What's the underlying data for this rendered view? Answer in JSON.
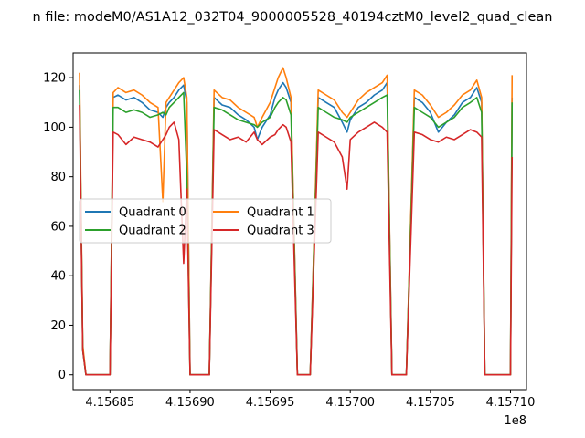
{
  "chart_data": {
    "type": "line",
    "title": "n file: modeM0/AS1A12_032T04_9000005528_40194cztM0_level2_quad_clean",
    "xlabel": "",
    "ylabel": "",
    "x_offset_label": "1e8",
    "xlim": [
      415682700,
      415711000
    ],
    "ylim": [
      -6,
      130
    ],
    "x_ticks": [
      415685000,
      415690000,
      415695000,
      415700000,
      415705000,
      415710000
    ],
    "x_tick_labels": [
      "4.15685",
      "4.15690",
      "4.15695",
      "4.15700",
      "4.15705",
      "4.15710"
    ],
    "y_ticks": [
      0,
      20,
      40,
      60,
      80,
      100,
      120
    ],
    "y_tick_labels": [
      "0",
      "20",
      "40",
      "60",
      "80",
      "100",
      "120"
    ],
    "grid": false,
    "legend_position": "center-left",
    "legend_columns": 2,
    "series": [
      {
        "name": "Quadrant 0",
        "color": "#1f77b4",
        "x": [
          415683100,
          415683300,
          415683500,
          415683700,
          415684000,
          415684400,
          415684800,
          415685000,
          415685200,
          415685500,
          415686000,
          415686500,
          415687000,
          415687500,
          415688000,
          415688300,
          415688500,
          415688700,
          415689000,
          415689300,
          415689600,
          415689800,
          415690000,
          415690500,
          415691000,
          415691200,
          415691500,
          415692000,
          415692500,
          415693000,
          415693500,
          415694000,
          415694200,
          415694500,
          415695000,
          415695300,
          415695500,
          415695800,
          415696000,
          415696300,
          415696700,
          415697000,
          415697200,
          415697500,
          415698000,
          415698500,
          415699000,
          415699500,
          415699800,
          415700000,
          415700500,
          415701000,
          415701500,
          415702000,
          415702300,
          415702600,
          415703000,
          415703300,
          415703500,
          415704000,
          415704500,
          415705000,
          415705500,
          415706000,
          415706500,
          415707000,
          415707500,
          415707900,
          415708200,
          415708400,
          415708700,
          415709000,
          415709500,
          415709800,
          415710000,
          415710100
        ],
        "y": [
          117,
          10,
          0,
          0,
          0,
          0,
          0,
          0,
          112,
          113,
          111,
          112,
          110,
          107,
          106,
          104,
          108,
          110,
          112,
          115,
          117,
          110,
          0,
          0,
          0,
          0,
          112,
          109,
          108,
          105,
          103,
          100,
          95,
          100,
          105,
          112,
          115,
          118,
          116,
          110,
          0,
          0,
          0,
          0,
          112,
          110,
          108,
          102,
          98,
          103,
          108,
          110,
          113,
          115,
          118,
          0,
          0,
          0,
          0,
          112,
          110,
          106,
          98,
          102,
          105,
          110,
          112,
          116,
          110,
          0,
          0,
          0,
          0,
          0,
          0,
          112
        ]
      },
      {
        "name": "Quadrant 1",
        "color": "#ff7f0e",
        "x": [
          415683100,
          415683300,
          415683500,
          415683700,
          415684000,
          415684400,
          415684800,
          415685000,
          415685200,
          415685500,
          415686000,
          415686500,
          415687000,
          415687500,
          415688000,
          415688300,
          415688500,
          415688700,
          415689000,
          415689300,
          415689600,
          415689800,
          415690000,
          415690500,
          415691000,
          415691200,
          415691500,
          415692000,
          415692500,
          415693000,
          415693500,
          415694000,
          415694200,
          415694500,
          415695000,
          415695300,
          415695500,
          415695800,
          415696000,
          415696300,
          415696700,
          415697000,
          415697200,
          415697500,
          415698000,
          415698500,
          415699000,
          415699500,
          415699800,
          415700000,
          415700500,
          415701000,
          415701500,
          415702000,
          415702300,
          415702600,
          415703000,
          415703300,
          415703500,
          415704000,
          415704500,
          415705000,
          415705500,
          415706000,
          415706500,
          415707000,
          415707500,
          415707900,
          415708200,
          415708400,
          415708700,
          415709000,
          415709500,
          415709800,
          415710000,
          415710100
        ],
        "y": [
          122,
          12,
          0,
          0,
          0,
          0,
          0,
          0,
          114,
          116,
          114,
          115,
          113,
          110,
          108,
          70,
          110,
          112,
          115,
          118,
          120,
          112,
          0,
          0,
          0,
          0,
          115,
          112,
          111,
          108,
          106,
          104,
          100,
          104,
          110,
          116,
          120,
          124,
          120,
          112,
          0,
          0,
          0,
          0,
          115,
          113,
          111,
          106,
          104,
          106,
          111,
          114,
          116,
          118,
          121,
          0,
          0,
          0,
          0,
          115,
          113,
          109,
          104,
          106,
          109,
          113,
          115,
          119,
          112,
          0,
          0,
          0,
          0,
          0,
          0,
          121
        ]
      },
      {
        "name": "Quadrant 2",
        "color": "#2ca02c",
        "x": [
          415683100,
          415683300,
          415683500,
          415683700,
          415684000,
          415684400,
          415684800,
          415685000,
          415685200,
          415685500,
          415686000,
          415686500,
          415687000,
          415687500,
          415688000,
          415688300,
          415688500,
          415688700,
          415689000,
          415689300,
          415689600,
          415689800,
          415690000,
          415690500,
          415691000,
          415691200,
          415691500,
          415692000,
          415692500,
          415693000,
          415693500,
          415694000,
          415694200,
          415694500,
          415695000,
          415695300,
          415695500,
          415695800,
          415696000,
          415696300,
          415696700,
          415697000,
          415697200,
          415697500,
          415698000,
          415698500,
          415699000,
          415699500,
          415699800,
          415700000,
          415700500,
          415701000,
          415701500,
          415702000,
          415702300,
          415702600,
          415703000,
          415703300,
          415703500,
          415704000,
          415704500,
          415705000,
          415705500,
          415706000,
          415706500,
          415707000,
          415707500,
          415707900,
          415708200,
          415708400,
          415708700,
          415709000,
          415709500,
          415709800,
          415710000,
          415710100
        ],
        "y": [
          115,
          10,
          0,
          0,
          0,
          0,
          0,
          0,
          108,
          108,
          106,
          107,
          106,
          104,
          105,
          106,
          105,
          108,
          110,
          112,
          114,
          80,
          0,
          0,
          0,
          0,
          108,
          107,
          105,
          103,
          102,
          101,
          100,
          102,
          104,
          108,
          110,
          112,
          111,
          105,
          0,
          0,
          0,
          0,
          108,
          106,
          104,
          103,
          102,
          104,
          106,
          108,
          110,
          112,
          113,
          0,
          0,
          0,
          0,
          108,
          106,
          104,
          100,
          102,
          104,
          108,
          110,
          112,
          106,
          0,
          0,
          0,
          0,
          0,
          0,
          110
        ]
      },
      {
        "name": "Quadrant 3",
        "color": "#d62728",
        "x": [
          415683100,
          415683300,
          415683500,
          415683700,
          415684000,
          415684400,
          415684800,
          415685000,
          415685200,
          415685500,
          415686000,
          415686500,
          415687000,
          415687500,
          415688000,
          415688300,
          415688500,
          415688700,
          415689000,
          415689300,
          415689600,
          415689800,
          415690000,
          415690500,
          415691000,
          415691200,
          415691500,
          415692000,
          415692500,
          415693000,
          415693500,
          415694000,
          415694200,
          415694500,
          415695000,
          415695300,
          415695500,
          415695800,
          415696000,
          415696300,
          415696700,
          415697000,
          415697200,
          415697500,
          415698000,
          415698500,
          415699000,
          415699500,
          415699800,
          415700000,
          415700500,
          415701000,
          415701500,
          415702000,
          415702300,
          415702600,
          415703000,
          415703300,
          415703500,
          415704000,
          415704500,
          415705000,
          415705500,
          415706000,
          415706500,
          415707000,
          415707500,
          415707900,
          415708200,
          415708400,
          415708700,
          415709000,
          415709500,
          415709800,
          415710000,
          415710100
        ],
        "y": [
          109,
          10,
          0,
          0,
          0,
          0,
          0,
          0,
          98,
          97,
          93,
          96,
          95,
          94,
          92,
          95,
          97,
          100,
          102,
          95,
          45,
          75,
          0,
          0,
          0,
          0,
          99,
          97,
          95,
          96,
          94,
          98,
          95,
          93,
          96,
          97,
          99,
          101,
          100,
          94,
          0,
          0,
          0,
          0,
          98,
          96,
          94,
          88,
          75,
          95,
          98,
          100,
          102,
          100,
          98,
          0,
          0,
          0,
          0,
          98,
          97,
          95,
          94,
          96,
          95,
          97,
          99,
          98,
          96,
          0,
          0,
          0,
          0,
          0,
          0,
          88
        ]
      }
    ]
  }
}
